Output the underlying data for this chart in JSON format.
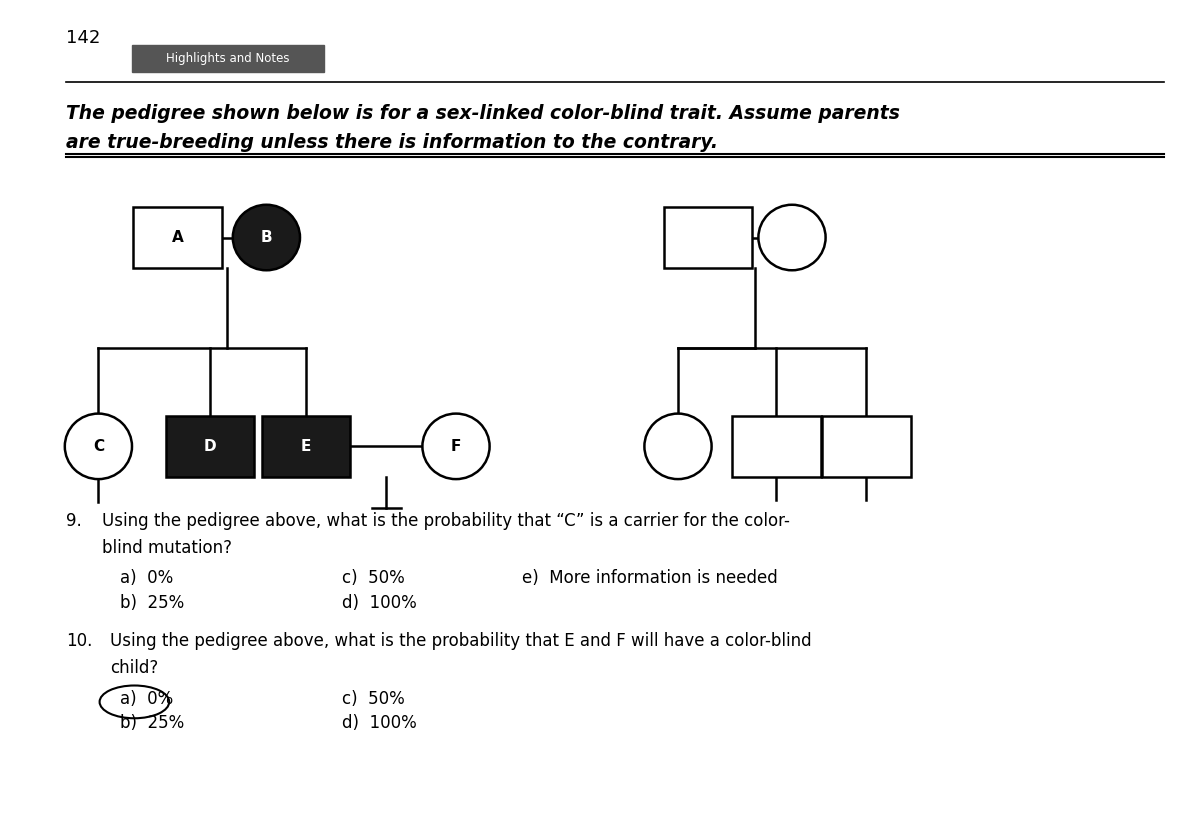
{
  "page_number": "142",
  "highlights_button_text": "Highlights and Notes",
  "title_line1": "The pedigree shown below is for a sex-linked color-blind trait. Assume parents",
  "title_line2": "are true-breeding unless there is information to the contrary.",
  "q9_line1": "Using the pedigree above, what is the probability that “C” is a carrier for the color-",
  "q9_line2": "blind mutation?",
  "q9_a": "a)  0%",
  "q9_b": "b)  25%",
  "q9_c": "c)  50%",
  "q9_d": "d)  100%",
  "q9_e": "e)  More information is needed",
  "q10_line1": "Using the pedigree above, what is the probability that E and F will have a color-blind",
  "q10_line2": "child?",
  "q10_a": "a)  0%",
  "q10_b": "b)  25%",
  "q10_c": "c)  50%",
  "q10_d": "d)  100%",
  "background_color": "#ffffff",
  "line_color": "#000000",
  "filled_color": "#1a1a1a",
  "unfilled_color": "#ffffff",
  "highlight_btn_color": "#555555",
  "highlight_btn_text_color": "#ffffff"
}
